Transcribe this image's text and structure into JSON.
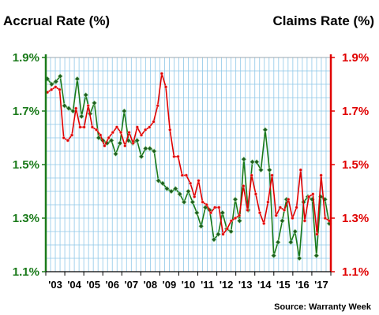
{
  "chart_data": {
    "type": "line",
    "left_axis_title": "Accrual Rate (%)",
    "right_axis_title": "Claims Rate (%)",
    "source": "Source: Warranty Week",
    "x_tick_labels": [
      "'03",
      "'04",
      "'05",
      "'06",
      "'07",
      "'08",
      "'09",
      "'10",
      "'11",
      "'12",
      "'13",
      "'14",
      "'15",
      "'16",
      "'17"
    ],
    "y_tick_labels": [
      "1.1%",
      "1.3%",
      "1.5%",
      "1.7%",
      "1.9%"
    ],
    "y_ticks": [
      1.1,
      1.3,
      1.5,
      1.7,
      1.9
    ],
    "ylim": [
      1.1,
      1.9
    ],
    "grid": true,
    "colors": {
      "accrual": "#1a7a1a",
      "claims": "#e00000",
      "grid": "#8fc8e8",
      "accrual_marker_fill": "#1f5e1f"
    },
    "series": [
      {
        "axis": "left",
        "values": [
          1.82,
          1.8,
          1.81,
          1.83,
          1.72,
          1.71,
          1.7,
          1.82,
          1.68,
          1.76,
          1.69,
          1.73,
          1.6,
          1.59,
          1.58,
          1.59,
          1.54,
          1.58,
          1.7,
          1.59,
          1.58,
          1.59,
          1.53,
          1.56,
          1.56,
          1.55,
          1.44,
          1.43,
          1.41,
          1.4,
          1.41,
          1.39,
          1.36,
          1.4,
          1.36,
          1.32,
          1.27,
          1.34,
          1.33,
          1.22,
          1.24,
          1.32,
          1.26,
          1.25,
          1.37,
          1.29,
          1.52,
          1.33,
          1.51,
          1.51,
          1.48,
          1.63,
          1.48,
          1.16,
          1.21,
          1.29,
          1.37,
          1.21,
          1.25,
          1.15,
          1.36,
          1.38,
          1.37,
          1.16,
          1.38,
          1.37,
          1.28
        ]
      },
      {
        "axis": "right",
        "values": [
          1.77,
          1.78,
          1.79,
          1.78,
          1.6,
          1.59,
          1.61,
          1.71,
          1.64,
          1.64,
          1.72,
          1.64,
          1.63,
          1.61,
          1.57,
          1.6,
          1.62,
          1.64,
          1.62,
          1.57,
          1.62,
          1.58,
          1.64,
          1.61,
          1.63,
          1.64,
          1.66,
          1.72,
          1.84,
          1.79,
          1.63,
          1.53,
          1.53,
          1.46,
          1.46,
          1.43,
          1.38,
          1.44,
          1.36,
          1.35,
          1.32,
          1.34,
          1.34,
          1.24,
          1.26,
          1.29,
          1.3,
          1.31,
          1.42,
          1.33,
          1.46,
          1.39,
          1.32,
          1.28,
          1.36,
          1.46,
          1.31,
          1.34,
          1.33,
          1.37,
          1.3,
          1.34,
          1.48,
          1.29,
          1.38,
          1.39,
          1.24,
          1.46,
          1.3,
          1.29
        ]
      }
    ]
  }
}
